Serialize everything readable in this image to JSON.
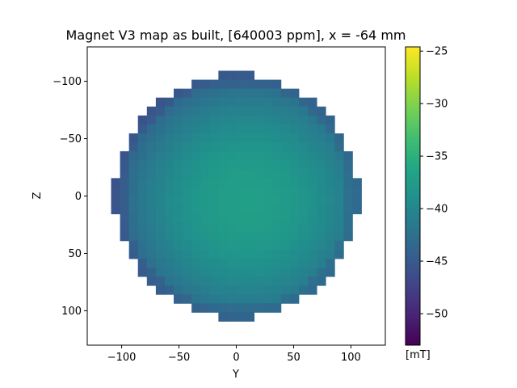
{
  "chart_data": {
    "type": "heatmap",
    "title": "Magnet V3 map as built, [640003 ppm], x = -64 mm",
    "xlabel": "Y",
    "ylabel": "Z",
    "xlim": [
      -130,
      130
    ],
    "ylim": [
      130,
      -130
    ],
    "y_inverted": true,
    "xticks": [
      -100,
      -50,
      0,
      50,
      100
    ],
    "yticks": [
      -100,
      -50,
      0,
      50,
      100
    ],
    "xtick_labels": [
      "−100",
      "−50",
      "0",
      "50",
      "100"
    ],
    "ytick_labels": [
      "−100",
      "−50",
      "0",
      "50",
      "100"
    ],
    "cell_size_mm": 7.8,
    "disk_radius_mm": 106,
    "colormap": "viridis",
    "colorbar": {
      "label": "[mT]",
      "vmin": -53,
      "vmax": -24.6,
      "ticks": [
        -25,
        -30,
        -35,
        -40,
        -45,
        -50
      ],
      "tick_labels": [
        "−25",
        "−30",
        "−35",
        "−40",
        "−45",
        "−50"
      ]
    },
    "field_model": {
      "center_value_mT": -37.0,
      "center_offset_mm": [
        10,
        5
      ],
      "curvature_mT_per_mm2": 0.00055,
      "extra_edge_drop_mT": 1.2
    }
  }
}
